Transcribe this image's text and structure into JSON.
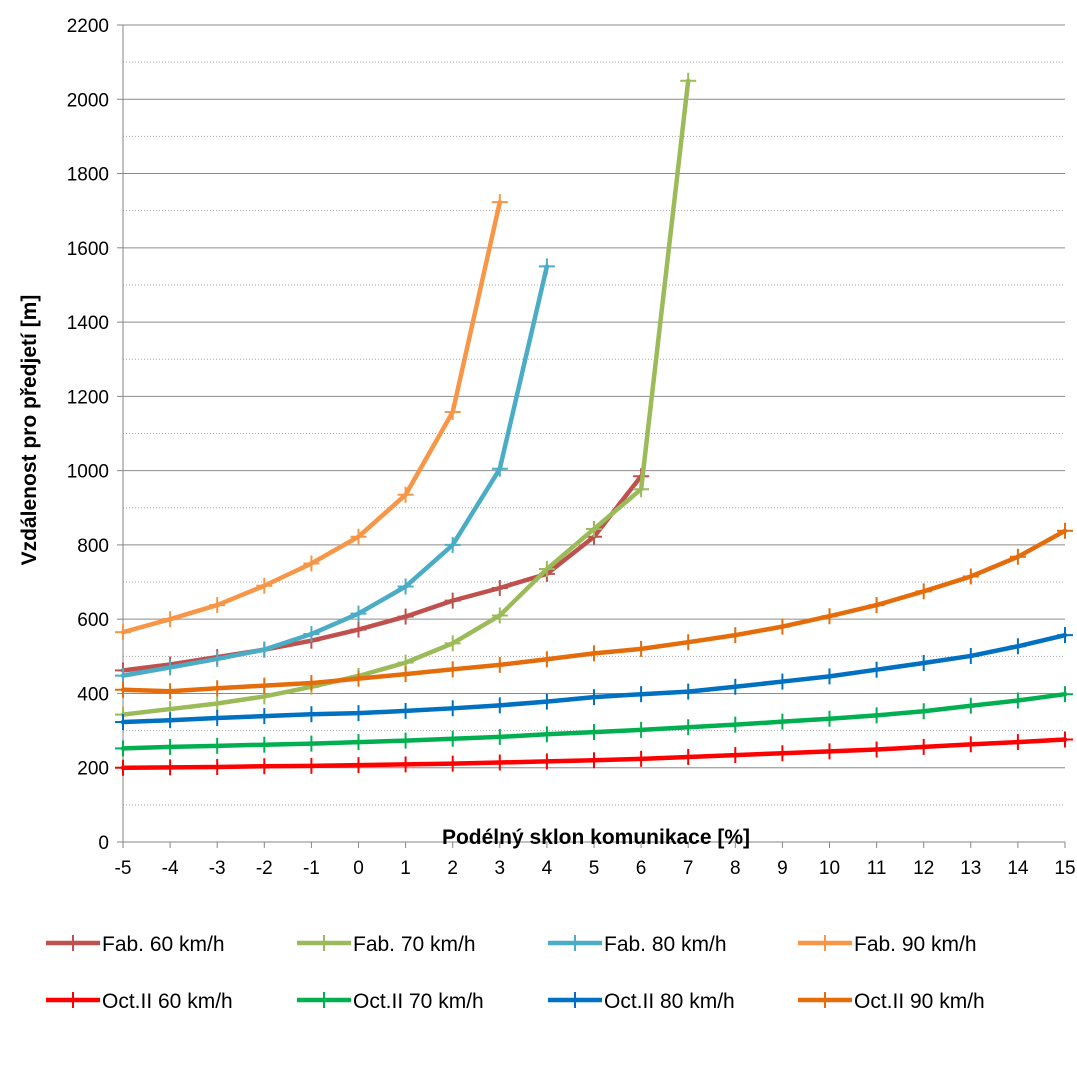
{
  "chart_data": {
    "type": "line",
    "title": "",
    "xlabel": "Podélný sklon komunikace [%]",
    "ylabel": "Vzdálenost pro předjetí [m]",
    "x": [
      -5,
      -4,
      -3,
      -2,
      -1,
      0,
      1,
      2,
      3,
      4,
      5,
      6,
      7,
      8,
      9,
      10,
      11,
      12,
      13,
      14,
      15
    ],
    "x_tick_labels": [
      "-5",
      "-4",
      "-3",
      "-2",
      "-1",
      "0",
      "1",
      "2",
      "3",
      "4",
      "5",
      "6",
      "7",
      "8",
      "9",
      "10",
      "11",
      "12",
      "13",
      "14",
      "15"
    ],
    "xlim": [
      -5,
      15
    ],
    "ylim": [
      0,
      2200
    ],
    "y_ticks": [
      0,
      200,
      400,
      600,
      800,
      1000,
      1200,
      1400,
      1600,
      1800,
      2000,
      2200
    ],
    "y_tick_labels": [
      "0",
      "200",
      "400",
      "600",
      "800",
      "1000",
      "1200",
      "1400",
      "1600",
      "1800",
      "2000",
      "2200"
    ],
    "grid": "major and minor horizontal",
    "legend_position": "bottom",
    "series": [
      {
        "name": "Fab. 60 km/h",
        "color": "#c0504d",
        "x": [
          -5,
          -4,
          -3,
          -2,
          -1,
          0,
          1,
          2,
          3,
          4,
          5,
          6
        ],
        "values": [
          462,
          478,
          498,
          518,
          542,
          572,
          607,
          650,
          684,
          722,
          822,
          985
        ]
      },
      {
        "name": "Fab. 70 km/h",
        "color": "#9bbb59",
        "x": [
          -5,
          -4,
          -3,
          -2,
          -1,
          0,
          1,
          2,
          3,
          4,
          5,
          6,
          7
        ],
        "values": [
          343,
          358,
          373,
          392,
          418,
          447,
          483,
          535,
          610,
          735,
          843,
          950,
          2050
        ]
      },
      {
        "name": "Fab. 80 km/h",
        "color": "#4bacc6",
        "x": [
          -5,
          -4,
          -3,
          -2,
          -1,
          0,
          1,
          2,
          3,
          4
        ],
        "values": [
          448,
          470,
          493,
          518,
          560,
          615,
          688,
          800,
          1005,
          1550
        ]
      },
      {
        "name": "Fab. 90 km/h",
        "color": "#f79646",
        "x": [
          -5,
          -4,
          -3,
          -2,
          -1,
          0,
          1,
          2,
          3
        ],
        "values": [
          565,
          600,
          638,
          690,
          750,
          822,
          935,
          1158,
          1723
        ]
      },
      {
        "name": "Oct.II 60 km/h",
        "color": "#ff0000",
        "x": [
          -5,
          -4,
          -3,
          -2,
          -1,
          0,
          1,
          2,
          3,
          4,
          5,
          6,
          7,
          8,
          9,
          10,
          11,
          12,
          13,
          14,
          15
        ],
        "values": [
          200,
          201,
          202,
          204,
          205,
          207,
          209,
          211,
          214,
          217,
          220,
          224,
          229,
          234,
          239,
          244,
          249,
          256,
          263,
          269,
          276
        ]
      },
      {
        "name": "Oct.II 70 km/h",
        "color": "#00b050",
        "x": [
          -5,
          -4,
          -3,
          -2,
          -1,
          0,
          1,
          2,
          3,
          4,
          5,
          6,
          7,
          8,
          9,
          10,
          11,
          12,
          13,
          14,
          15
        ],
        "values": [
          252,
          256,
          259,
          262,
          265,
          269,
          273,
          278,
          283,
          290,
          296,
          302,
          309,
          316,
          324,
          332,
          341,
          352,
          367,
          381,
          398
        ]
      },
      {
        "name": "Oct.II 80 km/h",
        "color": "#0070c0",
        "x": [
          -5,
          -4,
          -3,
          -2,
          -1,
          0,
          1,
          2,
          3,
          4,
          5,
          6,
          7,
          8,
          9,
          10,
          11,
          12,
          13,
          14,
          15
        ],
        "values": [
          323,
          328,
          334,
          339,
          344,
          347,
          353,
          360,
          368,
          378,
          390,
          398,
          405,
          418,
          432,
          446,
          464,
          482,
          501,
          527,
          557
        ]
      },
      {
        "name": "Oct.II 90 km/h",
        "color": "#e46c0a",
        "x": [
          -5,
          -4,
          -3,
          -2,
          -1,
          0,
          1,
          2,
          3,
          4,
          5,
          6,
          7,
          8,
          9,
          10,
          11,
          12,
          13,
          14,
          15
        ],
        "values": [
          410,
          406,
          414,
          421,
          428,
          440,
          452,
          465,
          477,
          492,
          508,
          520,
          538,
          557,
          580,
          608,
          638,
          675,
          715,
          768,
          838
        ]
      }
    ]
  }
}
